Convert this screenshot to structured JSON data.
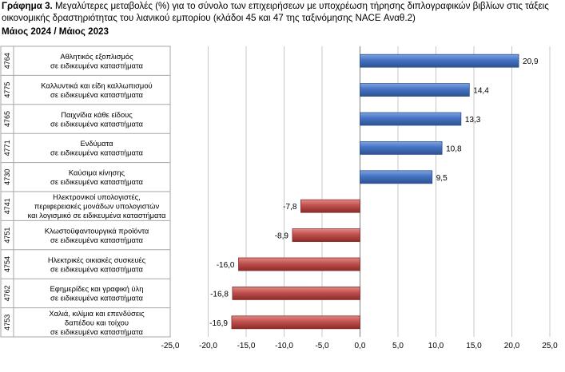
{
  "header": {
    "title_lead": "Γράφημα 3.",
    "title_rest": " Μεγαλύτερες μεταβολές (%) για το σύνολο των επιχειρήσεων με υποχρέωση τήρησης διπλογραφικών βιβλίων στις τάξεις οικονομικής δραστηριότητας του λιανικού εμπορίου (κλάδοι 45 και 47 της ταξινόμησης NACE Αναθ.2)",
    "subtitle": "Μάιος 2024 / Μάιος 2023"
  },
  "chart_data": {
    "type": "bar",
    "orientation": "horizontal",
    "codes": [
      "4764",
      "4775",
      "4765",
      "4771",
      "4730",
      "4741",
      "4751",
      "4754",
      "4762",
      "4753"
    ],
    "categories": [
      [
        "Αθλητικός εξοπλισμός",
        "σε ειδικευμένα καταστήματα"
      ],
      [
        "Καλλυντικά και είδη καλλωπισμού",
        "σε ειδικευμένα καταστήματα"
      ],
      [
        "Παιχνίδια κάθε είδους",
        "σε ειδικευμένα καταστήματα"
      ],
      [
        "Ενδύματα",
        "σε ειδικευμένα καταστήματα"
      ],
      [
        "Καύσιμα κίνησης",
        "σε ειδικευμένα καταστήματα"
      ],
      [
        "Ηλεκτρονικοί υπολογιστές,",
        "περιφερειακές μονάδων υπολογιστών",
        "και λογισμικό σε ειδικευμένα καταστήματα"
      ],
      [
        "Κλωστοϋφαντουργικά προϊόντα",
        "σε ειδικευμένα καταστήματα"
      ],
      [
        "Ηλεκτρικές οικιακές συσκευές",
        "σε ειδικευμένα καταστήματα"
      ],
      [
        "Εφημερίδες και γραφική ύλη",
        "σε ειδικευμένα καταστήματα"
      ],
      [
        "Χαλιά, κιλίμια και επενδύσεις",
        "δαπέδου και τοίχου",
        "σε ειδικευμένα καταστήματα"
      ]
    ],
    "values": [
      20.9,
      14.4,
      13.3,
      10.8,
      9.5,
      -7.8,
      -8.9,
      -16.0,
      -16.8,
      -16.9
    ],
    "value_labels": [
      "20,9",
      "14,4",
      "13,3",
      "10,8",
      "9,5",
      "-7,8",
      "-8,9",
      "-16,0",
      "-16,8",
      "-16,9"
    ],
    "x_ticks": [
      -25,
      -20,
      -15,
      -10,
      -5,
      0,
      5,
      10,
      15,
      20,
      25
    ],
    "x_tick_labels": [
      "-25,0",
      "-20,0",
      "-15,0",
      "-10,0",
      "-5,0",
      "0,0",
      "5,0",
      "10,0",
      "15,0",
      "20,0",
      "25,0"
    ],
    "xlim": [
      -25,
      25
    ],
    "grid": true,
    "colors": {
      "positive": "#4472c4",
      "negative": "#c0504d",
      "positive_dark": "#2f528f",
      "negative_dark": "#8b2c2a",
      "grid": "#c8c8c8"
    }
  }
}
